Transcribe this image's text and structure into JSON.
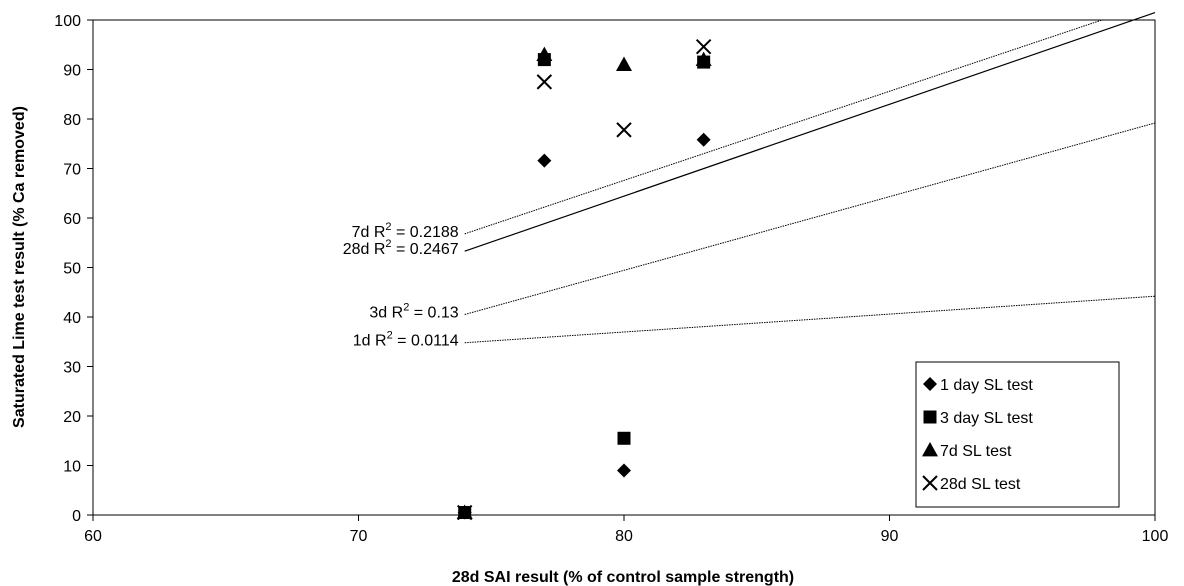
{
  "chart_data": {
    "type": "scatter",
    "title": "",
    "xlabel": "28d SAI result (% of control sample strength)",
    "ylabel": "Saturated Lime test result (% Ca removed)",
    "xlim": [
      60,
      100
    ],
    "ylim": [
      0,
      100
    ],
    "xticks": [
      "60",
      "70",
      "80",
      "90",
      "100"
    ],
    "yticks": [
      "0",
      "10",
      "20",
      "30",
      "40",
      "50",
      "60",
      "70",
      "80",
      "90",
      "100"
    ],
    "grid": false,
    "legend_position": "bottom-right",
    "series": [
      {
        "name": "1 day SL test",
        "marker": "diamond",
        "points": [
          [
            74,
            0.5
          ],
          [
            77,
            71.6
          ],
          [
            80,
            9
          ],
          [
            83,
            75.8
          ]
        ],
        "trendline": {
          "label_prefix": "1d R",
          "label_value": " = 0.0114",
          "x0": 74,
          "y0": 34.8,
          "x1": 100,
          "y1": 44.2,
          "style": "dotted"
        }
      },
      {
        "name": "3 day SL test",
        "marker": "square",
        "points": [
          [
            74,
            0.5
          ],
          [
            77,
            92
          ],
          [
            80,
            15.5
          ],
          [
            83,
            91.5
          ]
        ],
        "trendline": {
          "label_prefix": "3d R",
          "label_value": " = 0.13",
          "x0": 74,
          "y0": 40.5,
          "x1": 100,
          "y1": 79.2,
          "style": "dotted"
        }
      },
      {
        "name": "7d SL test",
        "marker": "triangle",
        "points": [
          [
            74,
            0.5
          ],
          [
            77,
            93
          ],
          [
            80,
            91
          ],
          [
            83,
            92
          ]
        ],
        "trendline": {
          "label_prefix": "7d R",
          "label_value": " = 0.2188",
          "x0": 74,
          "y0": 56.8,
          "x1": 98,
          "y1": 100,
          "style": "dotted"
        }
      },
      {
        "name": "28d SL test",
        "marker": "x",
        "points": [
          [
            74,
            0.5
          ],
          [
            77,
            87.5
          ],
          [
            80,
            77.8
          ],
          [
            83,
            94.6
          ]
        ],
        "trendline": {
          "label_prefix": "28d R",
          "label_value": " = 0.2467",
          "x0": 74,
          "y0": 53.3,
          "x1": 100,
          "y1": 101.5,
          "style": "solid"
        }
      }
    ],
    "superscript": "2"
  }
}
